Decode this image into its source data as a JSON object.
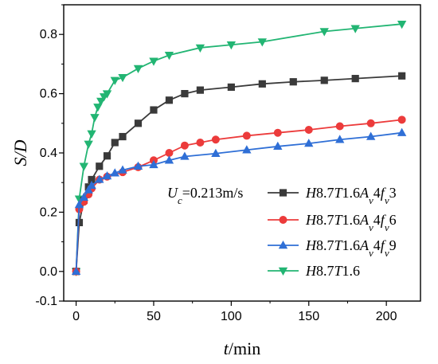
{
  "chart_data": {
    "type": "line",
    "xlabel": {
      "var": "t",
      "unit": "/min"
    },
    "ylabel": {
      "var": "S/D"
    },
    "xlim": [
      -8,
      222
    ],
    "ylim": [
      -0.1,
      0.9
    ],
    "xticks": [
      0,
      50,
      100,
      150,
      200
    ],
    "yticks": [
      -0.1,
      0.0,
      0.2,
      0.4,
      0.6,
      0.8
    ],
    "ytick_labels": [
      "-0.1",
      "0.0",
      "0.2",
      "0.4",
      "0.6",
      "0.8"
    ],
    "legend_title": {
      "main": "U",
      "sub": "c",
      "rest": "=0.213m/s"
    },
    "legend_placement": "bottom-right",
    "grid": false,
    "series": [
      {
        "label_parts": [
          [
            "H",
            "i"
          ],
          [
            "8.7",
            "n"
          ],
          [
            "T",
            "i"
          ],
          [
            "1.6",
            "n"
          ],
          [
            "A",
            "i"
          ],
          [
            "v",
            "sub"
          ],
          [
            "4",
            "n"
          ],
          [
            "f",
            "i"
          ],
          [
            "v",
            "sub"
          ],
          [
            "3",
            "n"
          ]
        ],
        "color": "#3a3a3a",
        "marker": "square",
        "x": [
          0,
          2,
          5,
          8,
          10,
          15,
          20,
          25,
          30,
          40,
          50,
          60,
          70,
          80,
          100,
          120,
          140,
          160,
          180,
          210
        ],
        "y": [
          0.0,
          0.165,
          0.24,
          0.285,
          0.31,
          0.355,
          0.39,
          0.435,
          0.455,
          0.5,
          0.545,
          0.578,
          0.6,
          0.612,
          0.622,
          0.633,
          0.64,
          0.645,
          0.651,
          0.66
        ]
      },
      {
        "label_parts": [
          [
            "H",
            "i"
          ],
          [
            "8.7",
            "n"
          ],
          [
            "T",
            "i"
          ],
          [
            "1.6",
            "n"
          ],
          [
            "A",
            "i"
          ],
          [
            "v",
            "sub"
          ],
          [
            "4",
            "n"
          ],
          [
            "f",
            "i"
          ],
          [
            "v",
            "sub"
          ],
          [
            "6",
            "n"
          ]
        ],
        "color": "#ec3b3b",
        "marker": "circle",
        "x": [
          0,
          2,
          5,
          8,
          10,
          15,
          20,
          30,
          40,
          50,
          60,
          70,
          80,
          90,
          110,
          130,
          150,
          170,
          190,
          210
        ],
        "y": [
          0.0,
          0.21,
          0.235,
          0.26,
          0.28,
          0.31,
          0.32,
          0.335,
          0.352,
          0.375,
          0.4,
          0.425,
          0.435,
          0.445,
          0.458,
          0.468,
          0.478,
          0.49,
          0.5,
          0.512
        ]
      },
      {
        "label_parts": [
          [
            "H",
            "i"
          ],
          [
            "8.7",
            "n"
          ],
          [
            "T",
            "i"
          ],
          [
            "1.6",
            "n"
          ],
          [
            "A",
            "i"
          ],
          [
            "v",
            "sub"
          ],
          [
            "4",
            "n"
          ],
          [
            "f",
            "i"
          ],
          [
            "v",
            "sub"
          ],
          [
            "9",
            "n"
          ]
        ],
        "color": "#2f6fd6",
        "marker": "triangle-up",
        "x": [
          0,
          2,
          5,
          8,
          10,
          15,
          20,
          25,
          30,
          40,
          50,
          60,
          70,
          90,
          110,
          130,
          150,
          170,
          190,
          210
        ],
        "y": [
          0.0,
          0.225,
          0.25,
          0.275,
          0.29,
          0.31,
          0.322,
          0.332,
          0.342,
          0.355,
          0.36,
          0.375,
          0.388,
          0.398,
          0.41,
          0.422,
          0.432,
          0.445,
          0.455,
          0.468
        ]
      },
      {
        "label_parts": [
          [
            "H",
            "i"
          ],
          [
            "8.7",
            "n"
          ],
          [
            "T",
            "i"
          ],
          [
            "1.6",
            "n"
          ]
        ],
        "color": "#22b573",
        "marker": "triangle-down",
        "x": [
          0,
          2,
          5,
          8,
          10,
          12,
          14,
          16,
          18,
          20,
          25,
          30,
          40,
          50,
          60,
          80,
          100,
          120,
          160,
          180,
          210
        ],
        "y": [
          0.0,
          0.245,
          0.355,
          0.43,
          0.465,
          0.52,
          0.555,
          0.575,
          0.59,
          0.6,
          0.645,
          0.655,
          0.685,
          0.71,
          0.73,
          0.755,
          0.765,
          0.775,
          0.81,
          0.82,
          0.835
        ]
      }
    ]
  }
}
